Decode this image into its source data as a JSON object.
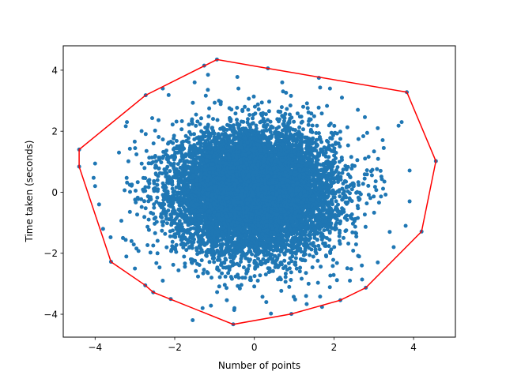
{
  "chart_data": {
    "type": "scatter",
    "title": "",
    "xlabel": "Number of points",
    "ylabel": "Time taken (seconds)",
    "xlim": [
      -4.8,
      5.05
    ],
    "ylim": [
      -4.75,
      4.8
    ],
    "xticks": [
      -4,
      -2,
      0,
      2,
      4
    ],
    "yticks": [
      -4,
      -2,
      0,
      2,
      4
    ],
    "grid": false,
    "legend": "none",
    "point_color": "#1f77b4",
    "hull_color": "#ff0000",
    "cloud": {
      "distribution": "bivariate normal",
      "mean": [
        0,
        0
      ],
      "std": [
        1,
        1
      ],
      "n_points": 10000
    },
    "series": [
      {
        "type": "scatter",
        "values": [
          [
            4.56,
            1.02
          ],
          [
            3.83,
            3.28
          ],
          [
            1.62,
            3.75
          ],
          [
            0.34,
            4.06
          ],
          [
            -0.94,
            4.35
          ],
          [
            -1.26,
            4.15
          ],
          [
            -2.73,
            3.18
          ],
          [
            -4.4,
            1.4
          ],
          [
            -4.4,
            0.84
          ],
          [
            -3.6,
            -2.28
          ],
          [
            -2.74,
            -3.05
          ],
          [
            -2.54,
            -3.28
          ],
          [
            -0.53,
            -4.33
          ],
          [
            0.93,
            -3.99
          ],
          [
            1.7,
            -3.76
          ],
          [
            2.16,
            -3.54
          ],
          [
            2.8,
            -3.13
          ],
          [
            4.2,
            -1.29
          ],
          [
            3.25,
            1.45
          ],
          [
            3.9,
            0.71
          ],
          [
            3.9,
            -0.3
          ],
          [
            3.8,
            -1.1
          ],
          [
            3.5,
            -1.8
          ],
          [
            3.1,
            -2.3
          ],
          [
            2.4,
            -2.9
          ],
          [
            1.3,
            -3.4
          ],
          [
            0.3,
            -3.6
          ],
          [
            -0.5,
            -3.8
          ],
          [
            -1.3,
            -3.8
          ],
          [
            -2.1,
            -3.5
          ],
          [
            -3.0,
            -2.5
          ],
          [
            -3.8,
            -1.2
          ],
          [
            -3.9,
            -0.4
          ],
          [
            -4.0,
            0.2
          ],
          [
            -3.4,
            1.3
          ],
          [
            -3.2,
            2.3
          ],
          [
            -2.3,
            3.4
          ],
          [
            -1.5,
            3.6
          ],
          [
            -0.4,
            3.4
          ],
          [
            0.7,
            3.6
          ],
          [
            1.9,
            3.4
          ],
          [
            2.6,
            2.7
          ],
          [
            3.1,
            2.1
          ],
          [
            3.7,
            2.3
          ],
          [
            -4.0,
            0.94
          ],
          [
            -3.3,
            -1.5
          ],
          [
            -2.3,
            -2.9
          ],
          [
            2.7,
            -2.4
          ],
          [
            3.4,
            -1.3
          ],
          [
            2.2,
            3.1
          ]
        ]
      },
      {
        "type": "line",
        "name": "",
        "closed": true,
        "values": [
          [
            4.56,
            1.02
          ],
          [
            3.83,
            3.28
          ],
          [
            0.34,
            4.06
          ],
          [
            -0.94,
            4.35
          ],
          [
            -2.73,
            3.18
          ],
          [
            -4.4,
            1.4
          ],
          [
            -4.4,
            0.84
          ],
          [
            -3.6,
            -2.28
          ],
          [
            -2.74,
            -3.05
          ],
          [
            -2.54,
            -3.28
          ],
          [
            -0.53,
            -4.33
          ],
          [
            0.93,
            -3.99
          ],
          [
            2.16,
            -3.54
          ],
          [
            2.8,
            -3.13
          ],
          [
            4.2,
            -1.29
          ]
        ]
      }
    ]
  }
}
